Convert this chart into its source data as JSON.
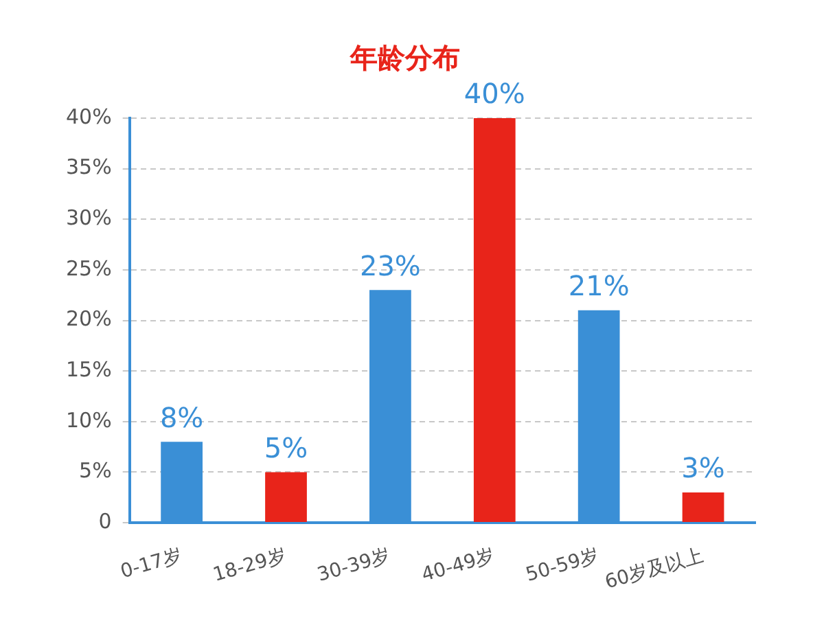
{
  "chart_data": {
    "type": "bar",
    "title": "年龄分布",
    "categories": [
      "0-17岁",
      "18-29岁",
      "30-39岁",
      "40-49岁",
      "50-59岁",
      "60岁及以上"
    ],
    "values": [
      8,
      5,
      23,
      40,
      21,
      3
    ],
    "colors": [
      "#3a8fd6",
      "#e8241a",
      "#3a8fd6",
      "#e8241a",
      "#3a8fd6",
      "#e8241a"
    ],
    "value_labels": [
      "8%",
      "5%",
      "23%",
      "40%",
      "21%",
      "3%"
    ],
    "ylim": [
      0,
      40
    ],
    "yticks": [
      0,
      {
        "value": 5,
        "label": "5%"
      },
      {
        "value": 10,
        "label": "10%"
      },
      {
        "value": 15,
        "label": "15%"
      },
      {
        "value": 20,
        "label": "20%"
      },
      {
        "value": 25,
        "label": "25%"
      },
      {
        "value": 30,
        "label": "30%"
      },
      {
        "value": 35,
        "label": "35%"
      },
      {
        "value": 40,
        "label": "40%"
      }
    ],
    "grid": "y"
  }
}
